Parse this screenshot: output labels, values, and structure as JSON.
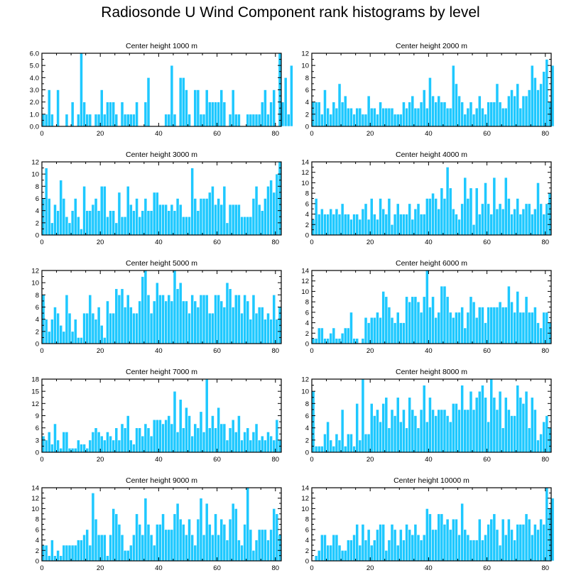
{
  "title": "Radiosonde U Wind Component rank histograms by level",
  "colors": {
    "bar": "#1ec8ff",
    "bar_edge": "#ffffff",
    "axis": "#000000"
  },
  "chart_data": [
    {
      "type": "bar",
      "title": "Center height 1000 m",
      "xlim": [
        0,
        82
      ],
      "ylim": [
        0,
        6
      ],
      "xticks": [
        0,
        20,
        40,
        60,
        80
      ],
      "yticks": [
        0,
        1,
        2,
        3,
        4,
        5,
        6
      ],
      "ytick_labels": [
        "0.0",
        "1.0",
        "2.0",
        "3.0",
        "4.0",
        "5.0",
        "6.0"
      ],
      "values": [
        1,
        1,
        3,
        1,
        0,
        3,
        0,
        0,
        1,
        0,
        2,
        0,
        1,
        6,
        2,
        1,
        1,
        0,
        1,
        1,
        3,
        1,
        2,
        2,
        2,
        1,
        0,
        2,
        1,
        1,
        1,
        1,
        2,
        0,
        0,
        2,
        4,
        0,
        0,
        0,
        0,
        0,
        1,
        1,
        5,
        1,
        0,
        4,
        4,
        3,
        1,
        0,
        3,
        3,
        1,
        1,
        3,
        2,
        2,
        2,
        2,
        3,
        2,
        0,
        1,
        3,
        1,
        1,
        0,
        0,
        1,
        1,
        1,
        1,
        1,
        2,
        3,
        1,
        2,
        3,
        0,
        6,
        2,
        4,
        1,
        5
      ]
    },
    {
      "type": "bar",
      "title": "Center height 2000 m",
      "xlim": [
        0,
        82
      ],
      "ylim": [
        0,
        12
      ],
      "xticks": [
        0,
        20,
        40,
        60,
        80
      ],
      "yticks": [
        0,
        2,
        4,
        6,
        8,
        10,
        12
      ],
      "ytick_labels": [
        "0",
        "2",
        "4",
        "6",
        "8",
        "10",
        "12"
      ],
      "values": [
        4,
        4,
        4,
        2,
        6,
        3,
        2,
        4,
        3,
        7,
        4,
        5,
        3,
        3,
        2,
        3,
        3,
        2,
        2,
        5,
        3,
        3,
        2,
        4,
        3,
        3,
        3,
        3,
        2,
        2,
        2,
        4,
        3,
        4,
        5,
        3,
        3,
        4,
        6,
        3,
        8,
        5,
        4,
        5,
        4,
        4,
        3,
        3,
        10,
        7,
        5,
        4,
        2,
        3,
        4,
        2,
        3,
        5,
        3,
        2,
        4,
        4,
        4,
        7,
        4,
        3,
        3,
        5,
        6,
        5,
        7,
        3,
        5,
        5,
        6,
        10,
        8,
        6,
        7,
        9,
        11,
        4,
        10
      ]
    },
    {
      "type": "bar",
      "title": "Center height 3000 m",
      "xlim": [
        0,
        82
      ],
      "ylim": [
        0,
        12
      ],
      "xticks": [
        0,
        20,
        40,
        60,
        80
      ],
      "yticks": [
        0,
        2,
        4,
        6,
        8,
        10,
        12
      ],
      "ytick_labels": [
        "0",
        "2",
        "4",
        "6",
        "8",
        "10",
        "12"
      ],
      "values": [
        6,
        11,
        6,
        2,
        5,
        4,
        9,
        6,
        3,
        2,
        4,
        6,
        3,
        1,
        8,
        4,
        4,
        5,
        6,
        4,
        8,
        8,
        3,
        4,
        4,
        2,
        7,
        3,
        3,
        8,
        5,
        4,
        6,
        3,
        4,
        6,
        4,
        4,
        7,
        7,
        5,
        5,
        5,
        4,
        5,
        4,
        6,
        5,
        3,
        3,
        3,
        11,
        6,
        4,
        6,
        6,
        6,
        7,
        8,
        5,
        6,
        5,
        8,
        2,
        5,
        5,
        5,
        5,
        3,
        3,
        3,
        3,
        6,
        8,
        5,
        4,
        6,
        8,
        9,
        7,
        10,
        12
      ]
    },
    {
      "type": "bar",
      "title": "Center height 4000 m",
      "xlim": [
        0,
        82
      ],
      "ylim": [
        0,
        14
      ],
      "xticks": [
        0,
        20,
        40,
        60,
        80
      ],
      "yticks": [
        0,
        2,
        4,
        6,
        8,
        10,
        12,
        14
      ],
      "ytick_labels": [
        "0",
        "2",
        "4",
        "6",
        "8",
        "10",
        "12",
        "14"
      ],
      "values": [
        3,
        7,
        4,
        5,
        4,
        4,
        5,
        4,
        5,
        4,
        6,
        4,
        4,
        3,
        4,
        4,
        3,
        5,
        6,
        3,
        7,
        4,
        3,
        7,
        5,
        4,
        7,
        2,
        4,
        6,
        4,
        4,
        4,
        6,
        3,
        5,
        6,
        4,
        4,
        7,
        7,
        8,
        7,
        5,
        9,
        7,
        13,
        9,
        5,
        4,
        3,
        6,
        11,
        7,
        9,
        2,
        9,
        4,
        6,
        10,
        6,
        4,
        11,
        5,
        6,
        5,
        11,
        7,
        4,
        5,
        7,
        4,
        5,
        6,
        6,
        4,
        5,
        10,
        6,
        4,
        6,
        8
      ]
    },
    {
      "type": "bar",
      "title": "Center height 5000 m",
      "xlim": [
        0,
        82
      ],
      "ylim": [
        0,
        12
      ],
      "xticks": [
        0,
        20,
        40,
        60,
        80
      ],
      "yticks": [
        0,
        2,
        4,
        6,
        8,
        10,
        12
      ],
      "ytick_labels": [
        "0",
        "2",
        "4",
        "6",
        "8",
        "10",
        "12"
      ],
      "values": [
        8,
        4,
        2,
        4,
        6,
        5,
        3,
        2,
        8,
        5,
        2,
        4,
        1,
        1,
        5,
        5,
        8,
        5,
        4,
        6,
        3,
        1,
        7,
        5,
        5,
        9,
        8,
        9,
        6,
        8,
        6,
        5,
        5,
        7,
        11,
        12,
        8,
        5,
        7,
        10,
        8,
        8,
        7,
        8,
        7,
        12,
        9,
        10,
        7,
        7,
        5,
        8,
        7,
        6,
        8,
        8,
        8,
        5,
        5,
        8,
        8,
        7,
        6,
        10,
        9,
        6,
        8,
        8,
        5,
        8,
        7,
        4,
        8,
        5,
        6,
        6,
        4,
        5,
        4,
        8,
        4,
        6
      ]
    },
    {
      "type": "bar",
      "title": "Center height 6000 m",
      "xlim": [
        0,
        82
      ],
      "ylim": [
        0,
        14
      ],
      "xticks": [
        0,
        20,
        40,
        60,
        80
      ],
      "yticks": [
        0,
        2,
        4,
        6,
        8,
        10,
        12,
        14
      ],
      "ytick_labels": [
        "0",
        "2",
        "4",
        "6",
        "8",
        "10",
        "12",
        "14"
      ],
      "values": [
        1,
        1,
        3,
        3,
        1,
        1,
        2,
        3,
        1,
        1,
        2,
        3,
        3,
        6,
        1,
        1,
        0,
        1,
        5,
        4,
        5,
        5,
        6,
        5,
        10,
        9,
        7,
        5,
        4,
        6,
        4,
        4,
        9,
        8,
        9,
        9,
        8,
        6,
        9,
        14,
        7,
        9,
        5,
        6,
        11,
        11,
        9,
        6,
        5,
        6,
        6,
        7,
        3,
        6,
        9,
        8,
        5,
        7,
        7,
        4,
        7,
        7,
        7,
        7,
        8,
        7,
        7,
        11,
        8,
        6,
        10,
        6,
        6,
        9,
        6,
        6,
        7,
        4,
        3,
        6,
        6,
        4
      ]
    },
    {
      "type": "bar",
      "title": "Center height 7000 m",
      "xlim": [
        0,
        82
      ],
      "ylim": [
        0,
        18
      ],
      "xticks": [
        0,
        20,
        40,
        60,
        80
      ],
      "yticks": [
        0,
        3,
        6,
        9,
        12,
        15,
        18
      ],
      "ytick_labels": [
        "0",
        "3",
        "6",
        "9",
        "12",
        "15",
        "18"
      ],
      "values": [
        4,
        3,
        5,
        2,
        7,
        3,
        1,
        5,
        5,
        1,
        1,
        1,
        3,
        2,
        2,
        1,
        3,
        5,
        6,
        5,
        4,
        3,
        5,
        4,
        3,
        6,
        3,
        7,
        6,
        9,
        3,
        2,
        6,
        6,
        4,
        7,
        6,
        4,
        8,
        8,
        8,
        7,
        8,
        9,
        7,
        15,
        5,
        13,
        6,
        11,
        9,
        4,
        7,
        6,
        10,
        5,
        18,
        6,
        9,
        6,
        11,
        7,
        7,
        3,
        6,
        8,
        5,
        9,
        3,
        5,
        6,
        3,
        5,
        7,
        3,
        4,
        3,
        5,
        4,
        3,
        8,
        3
      ]
    },
    {
      "type": "bar",
      "title": "Center height 8000 m",
      "xlim": [
        0,
        82
      ],
      "ylim": [
        0,
        12
      ],
      "xticks": [
        0,
        20,
        40,
        60,
        80
      ],
      "yticks": [
        0,
        2,
        4,
        6,
        8,
        10,
        12
      ],
      "ytick_labels": [
        "0",
        "2",
        "4",
        "6",
        "8",
        "10",
        "12"
      ],
      "values": [
        10,
        1,
        1,
        1,
        3,
        5,
        2,
        1,
        3,
        2,
        7,
        1,
        3,
        3,
        1,
        8,
        2,
        12,
        3,
        3,
        8,
        6,
        7,
        5,
        8,
        9,
        4,
        7,
        6,
        9,
        5,
        7,
        4,
        9,
        7,
        6,
        4,
        7,
        11,
        5,
        9,
        7,
        6,
        7,
        7,
        7,
        6,
        5,
        8,
        8,
        7,
        11,
        7,
        7,
        10,
        7,
        9,
        10,
        11,
        9,
        5,
        12,
        9,
        7,
        10,
        4,
        9,
        7,
        6,
        6,
        11,
        9,
        8,
        10,
        4,
        9,
        7,
        2,
        3,
        5,
        6,
        4
      ]
    },
    {
      "type": "bar",
      "title": "Center height 9000 m",
      "xlim": [
        0,
        82
      ],
      "ylim": [
        0,
        14
      ],
      "xticks": [
        0,
        20,
        40,
        60,
        80
      ],
      "yticks": [
        0,
        2,
        4,
        6,
        8,
        10,
        12,
        14
      ],
      "ytick_labels": [
        "0",
        "2",
        "4",
        "6",
        "8",
        "10",
        "12",
        "14"
      ],
      "values": [
        3,
        3,
        1,
        4,
        1,
        2,
        1,
        3,
        3,
        3,
        3,
        3,
        4,
        4,
        5,
        6,
        3,
        13,
        8,
        5,
        5,
        5,
        1,
        5,
        10,
        9,
        7,
        5,
        2,
        2,
        3,
        5,
        9,
        7,
        5,
        12,
        7,
        5,
        3,
        7,
        7,
        9,
        6,
        6,
        6,
        9,
        11,
        8,
        7,
        5,
        8,
        5,
        3,
        8,
        12,
        5,
        11,
        7,
        5,
        9,
        5,
        8,
        7,
        4,
        8,
        11,
        10,
        4,
        3,
        7,
        14,
        6,
        2,
        4,
        6,
        6,
        6,
        4,
        6,
        10,
        9,
        5
      ]
    },
    {
      "type": "bar",
      "title": "Center height 10000 m",
      "xlim": [
        0,
        82
      ],
      "ylim": [
        0,
        14
      ],
      "xticks": [
        0,
        20,
        40,
        60,
        80
      ],
      "yticks": [
        0,
        2,
        4,
        6,
        8,
        10,
        12,
        14
      ],
      "ytick_labels": [
        "0",
        "2",
        "4",
        "6",
        "8",
        "10",
        "12",
        "14"
      ],
      "values": [
        0,
        1,
        2,
        5,
        5,
        3,
        3,
        5,
        5,
        3,
        2,
        2,
        4,
        4,
        5,
        7,
        3,
        7,
        4,
        6,
        3,
        4,
        6,
        7,
        7,
        2,
        4,
        7,
        6,
        3,
        6,
        4,
        7,
        6,
        5,
        7,
        5,
        4,
        5,
        10,
        9,
        6,
        6,
        9,
        9,
        7,
        8,
        6,
        8,
        8,
        5,
        11,
        6,
        5,
        4,
        4,
        4,
        8,
        4,
        5,
        7,
        8,
        9,
        6,
        3,
        8,
        5,
        8,
        6,
        4,
        7,
        7,
        7,
        9,
        8,
        5,
        7,
        6,
        8,
        7,
        14,
        10,
        12
      ]
    }
  ]
}
